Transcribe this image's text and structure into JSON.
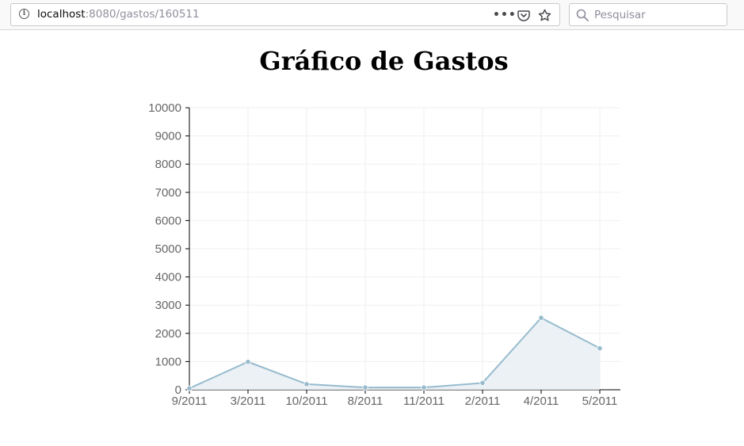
{
  "browser": {
    "url_host": "localhost",
    "url_path": ":8080/gastos/160511",
    "search_placeholder": "Pesquisar"
  },
  "page": {
    "title": "Gráfico de Gastos"
  },
  "chart_data": {
    "type": "area",
    "title": "Gráfico de Gastos",
    "xlabel": "",
    "ylabel": "",
    "categories": [
      "9/2011",
      "3/2011",
      "10/2011",
      "8/2011",
      "11/2011",
      "2/2011",
      "4/2011",
      "5/2011"
    ],
    "series": [
      {
        "values": [
          50,
          990,
          200,
          80,
          80,
          240,
          2550,
          1470
        ]
      }
    ],
    "ylim": [
      0,
      10000
    ],
    "yticks": [
      0,
      1000,
      2000,
      3000,
      4000,
      5000,
      6000,
      7000,
      8000,
      9000,
      10000
    ],
    "grid": true,
    "colors": {
      "line": "#97bbcd",
      "fill": "#e8eff3",
      "point": "#97bbcd",
      "grid": "#efefef",
      "axis": "#000000"
    }
  }
}
